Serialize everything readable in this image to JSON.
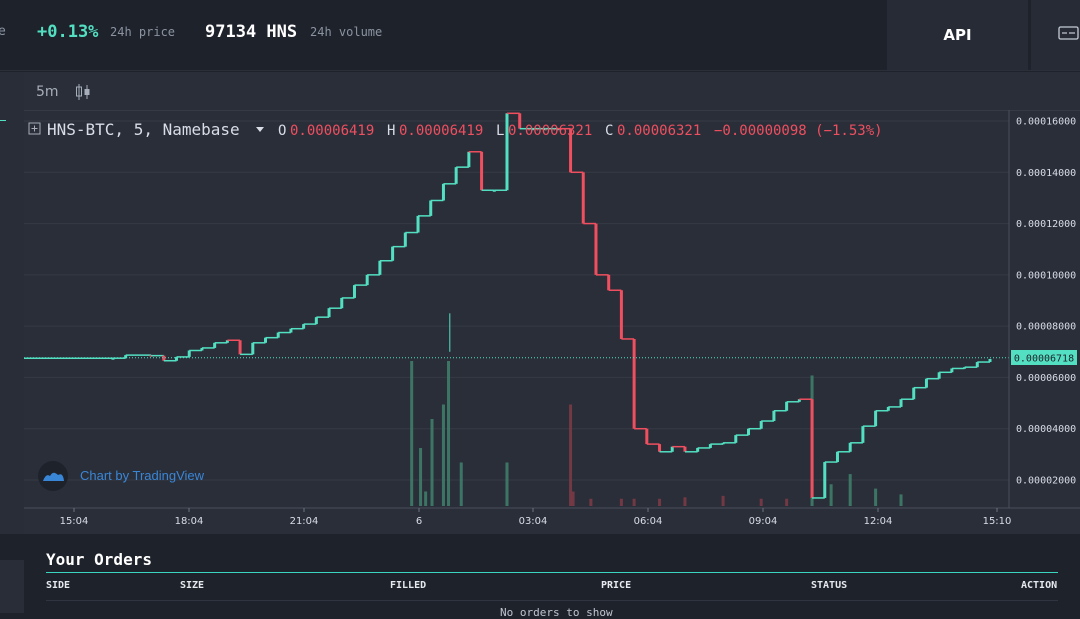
{
  "topbar": {
    "cut_text": "e",
    "price_change": "+0.13%",
    "price_label": "24h price",
    "volume_value": "97134 HNS",
    "volume_label": "24h volume",
    "api_label": "API"
  },
  "toolbar": {
    "interval": "5m"
  },
  "legend": {
    "symbol": "HNS-BTC, 5, Namebase",
    "o_label": "O",
    "o_value": "0.00006419",
    "h_label": "H",
    "h_value": "0.00006419",
    "l_label": "L",
    "l_value": "0.00006321",
    "c_label": "C",
    "c_value": "0.00006321",
    "change": "−0.00000098 (−1.53%)"
  },
  "watermark": "Chart by TradingView",
  "colors": {
    "up": "#53e0c2",
    "down": "#ef4f5f",
    "accent": "#3ad6c0",
    "background": "#2a2e39"
  },
  "chart_data": {
    "type": "candlestick",
    "y_tick_labels": [
      "0.00016000",
      "0.00014000",
      "0.00012000",
      "0.00010000",
      "0.00008000",
      "0.00006000",
      "0.00004000",
      "0.00002000"
    ],
    "y_ticks": [
      0.00016,
      0.00014,
      0.00012,
      0.0001,
      8e-05,
      6e-05,
      4e-05,
      2e-05
    ],
    "ylim": [
      9.5e-06,
      0.000165
    ],
    "x_tick_labels": [
      "15:04",
      "18:04",
      "21:04",
      "6",
      "03:04",
      "06:04",
      "09:04",
      "12:04",
      "15:10"
    ],
    "last_price_label": "0.00006718",
    "last_price": 6.718e-05,
    "price_path": [
      [
        0,
        6.75e-05
      ],
      [
        7,
        6.75e-05
      ],
      [
        8,
        6.87e-05
      ],
      [
        10,
        6.85e-05
      ],
      [
        11,
        6.65e-05
      ],
      [
        12,
        6.8e-05
      ],
      [
        13,
        7.05e-05
      ],
      [
        14,
        7.15e-05
      ],
      [
        15,
        7.35e-05
      ],
      [
        16,
        7.45e-05
      ],
      [
        17,
        6.9e-05
      ],
      [
        18,
        7.35e-05
      ],
      [
        19,
        7.55e-05
      ],
      [
        20,
        7.75e-05
      ],
      [
        21,
        7.9e-05
      ],
      [
        22,
        8.08e-05
      ],
      [
        23,
        8.35e-05
      ],
      [
        24,
        8.7e-05
      ],
      [
        25,
        9.1e-05
      ],
      [
        26,
        9.6e-05
      ],
      [
        27,
        0.0001
      ],
      [
        28,
        0.0001055
      ],
      [
        29,
        0.000111
      ],
      [
        30,
        0.0001165
      ],
      [
        31,
        0.000123
      ],
      [
        32,
        0.000129
      ],
      [
        33,
        0.0001355
      ],
      [
        34,
        0.000142
      ],
      [
        35,
        0.000148
      ],
      [
        36,
        0.000133
      ],
      [
        37,
        0.000133
      ],
      [
        38,
        0.000163
      ],
      [
        39,
        0.000157
      ],
      [
        40,
        0.000157
      ],
      [
        41,
        0.000157
      ],
      [
        42,
        0.000157
      ],
      [
        43,
        0.00014
      ],
      [
        44,
        0.00012
      ],
      [
        45,
        0.0001
      ],
      [
        46,
        9.4e-05
      ],
      [
        47,
        7.5e-05
      ],
      [
        48,
        4e-05
      ],
      [
        49,
        3.4e-05
      ],
      [
        50,
        3.1e-05
      ],
      [
        51,
        3.3e-05
      ],
      [
        52,
        3.1e-05
      ],
      [
        53,
        3.25e-05
      ],
      [
        54,
        3.4e-05
      ],
      [
        55,
        3.45e-05
      ],
      [
        56,
        3.75e-05
      ],
      [
        57,
        4e-05
      ],
      [
        58,
        4.3e-05
      ],
      [
        59,
        4.7e-05
      ],
      [
        60,
        5.05e-05
      ],
      [
        61,
        5.15e-05
      ],
      [
        62,
        1.3e-05
      ],
      [
        63,
        2.7e-05
      ],
      [
        64,
        3.1e-05
      ],
      [
        65,
        3.45e-05
      ],
      [
        66,
        4.1e-05
      ],
      [
        67,
        4.7e-05
      ],
      [
        68,
        4.85e-05
      ],
      [
        69,
        5.15e-05
      ],
      [
        70,
        5.6e-05
      ],
      [
        71,
        5.95e-05
      ],
      [
        72,
        6.2e-05
      ],
      [
        73,
        6.35e-05
      ],
      [
        74,
        6.4e-05
      ],
      [
        75,
        6.6e-05
      ],
      [
        76,
        6.72e-05
      ]
    ],
    "volume_bars": [
      [
        30.5,
        1
      ],
      [
        31.2,
        0.4
      ],
      [
        31.6,
        0.1
      ],
      [
        32.1,
        0.6
      ],
      [
        33.0,
        0.7
      ],
      [
        33.4,
        1
      ],
      [
        34.4,
        0.3
      ],
      [
        38.0,
        0.3
      ],
      [
        43.0,
        0.7
      ],
      [
        43.2,
        0.1
      ],
      [
        44.6,
        0.05
      ],
      [
        47,
        0.05
      ],
      [
        48,
        0.05
      ],
      [
        50,
        0.05
      ],
      [
        52,
        0.06
      ],
      [
        55,
        0.07
      ],
      [
        58,
        0.05
      ],
      [
        60,
        0.05
      ],
      [
        62,
        0.9
      ],
      [
        63.5,
        0.15
      ],
      [
        65,
        0.22
      ],
      [
        67,
        0.12
      ],
      [
        69,
        0.08
      ]
    ]
  },
  "orders": {
    "title": "Your Orders",
    "columns": [
      "SIDE",
      "SIZE",
      "FILLED",
      "PRICE",
      "STATUS",
      "ACTION"
    ],
    "empty_text": "No orders to show"
  }
}
